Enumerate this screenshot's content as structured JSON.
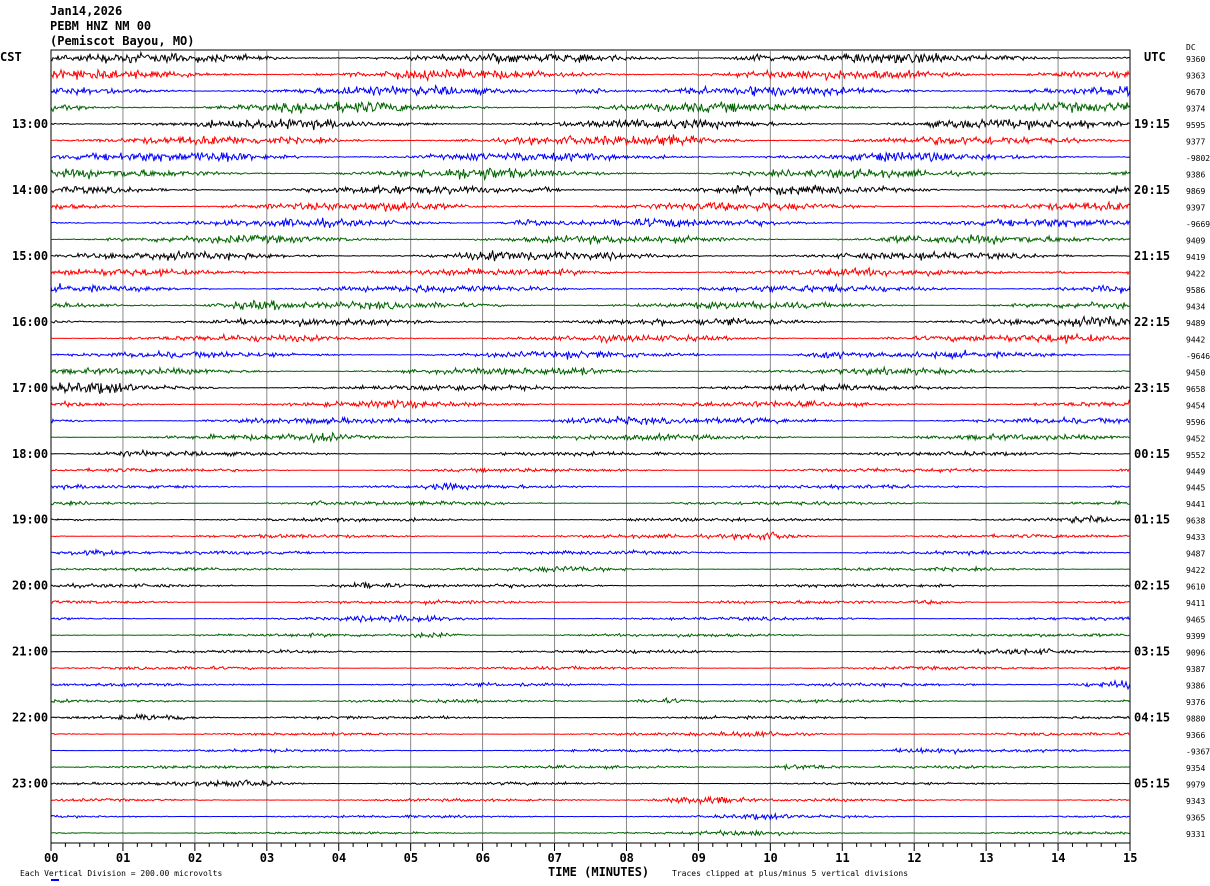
{
  "header": {
    "date": "Jan14,2026",
    "station": "PEBM HNZ NM 00",
    "location": "(Pemiscot Bayou, MO)"
  },
  "chart_data": {
    "type": "line",
    "subtype": "helicorder",
    "left_timezone": "CST",
    "right_timezone": "UTC",
    "dc_header": "DC",
    "xlabel": "TIME (MINUTES)",
    "x_ticks": [
      "00",
      "01",
      "02",
      "03",
      "04",
      "05",
      "06",
      "07",
      "08",
      "09",
      "10",
      "11",
      "12",
      "13",
      "14",
      "15"
    ],
    "xlim": [
      0,
      15
    ],
    "grid": true,
    "trace_colors": [
      "#000000",
      "#ff0000",
      "#0000ff",
      "#006400"
    ],
    "left_labels": [
      "",
      "",
      "",
      "",
      "13:00",
      "",
      "",
      "",
      "14:00",
      "",
      "",
      "",
      "15:00",
      "",
      "",
      "",
      "16:00",
      "",
      "",
      "",
      "17:00",
      "",
      "",
      "",
      "18:00",
      "",
      "",
      "",
      "19:00",
      "",
      "",
      "",
      "20:00",
      "",
      "",
      "",
      "21:00",
      "",
      "",
      "",
      "22:00",
      "",
      "",
      "",
      "23:00",
      "",
      "",
      ""
    ],
    "right_labels": [
      "",
      "",
      "",
      "",
      "19:15",
      "",
      "",
      "",
      "20:15",
      "",
      "",
      "",
      "21:15",
      "",
      "",
      "",
      "22:15",
      "",
      "",
      "",
      "23:15",
      "",
      "",
      "",
      "00:15",
      "",
      "",
      "",
      "01:15",
      "",
      "",
      "",
      "02:15",
      "",
      "",
      "",
      "03:15",
      "",
      "",
      "",
      "04:15",
      "",
      "",
      "",
      "05:15",
      "",
      "",
      ""
    ],
    "dc_values": [
      "9360",
      "9363",
      "9670",
      "9374",
      "9595",
      "9377",
      "-9802",
      "9386",
      "9869",
      "9397",
      "-9669",
      "9409",
      "9419",
      "9422",
      "9586",
      "9434",
      "9489",
      "9442",
      "-9646",
      "9450",
      "9658",
      "9454",
      "9596",
      "9452",
      "9552",
      "9449",
      "9445",
      "9441",
      "9638",
      "9433",
      "9487",
      "9422",
      "9610",
      "9411",
      "9465",
      "9399",
      "9096",
      "9387",
      "9386",
      "9376",
      "9880",
      "9366",
      "-9367",
      "9354",
      "9979",
      "9343",
      "9365",
      "9331"
    ],
    "vertical_scale": "Each Vertical Division =  200.00 microvolts",
    "clip_note": "Traces clipped at plus/minus 5 vertical divisions"
  }
}
